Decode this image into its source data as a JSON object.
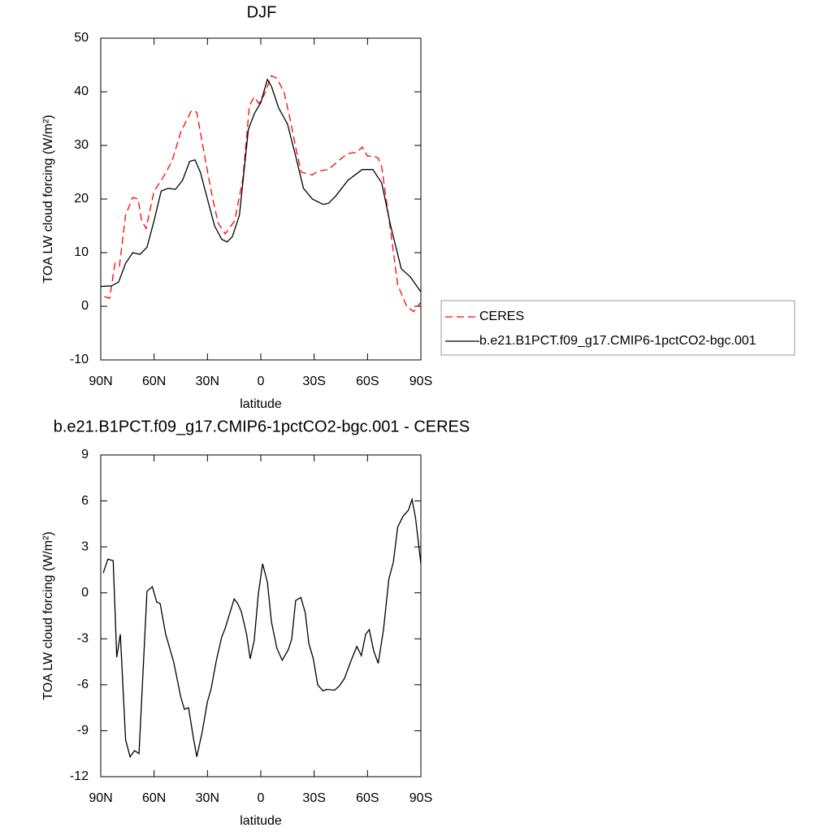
{
  "chart_data": [
    {
      "type": "line",
      "title": "DJF",
      "xlabel": "latitude",
      "ylabel": "TOA LW cloud forcing (W/m²)",
      "xlim": [
        90,
        -90
      ],
      "xticks": [
        {
          "value": 90,
          "label": "90N"
        },
        {
          "value": 60,
          "label": "60N"
        },
        {
          "value": 30,
          "label": "30N"
        },
        0,
        {
          "value": -30,
          "label": "30S"
        },
        {
          "value": -60,
          "label": "60S"
        },
        {
          "value": -90,
          "label": "90S"
        }
      ],
      "ylim": [
        -10,
        50
      ],
      "yticks": [
        -10,
        0,
        10,
        20,
        30,
        40,
        50
      ],
      "legend": "right",
      "series": [
        {
          "name": "CERES",
          "color": "#ff0000",
          "dash": true,
          "x": [
            88,
            85,
            82,
            79.5,
            76,
            72,
            69,
            67,
            64.5,
            60,
            55,
            50,
            45,
            39,
            36,
            31,
            27,
            24,
            20,
            14.6,
            10,
            6.4,
            3.7,
            1,
            -2,
            -6,
            -9,
            -13,
            -16.4,
            -20,
            -22.8,
            -29,
            -32,
            -38,
            -45,
            -49,
            -54,
            -57,
            -60,
            -64,
            -66,
            -68,
            -73,
            -77,
            -82,
            -86,
            -90
          ],
          "values": [
            1.8,
            1.5,
            8,
            7.5,
            17,
            20.3,
            20,
            16,
            14.5,
            21.5,
            24,
            27,
            32.5,
            36.5,
            36.2,
            27,
            20,
            15.5,
            13.5,
            16,
            24,
            37.5,
            39,
            37.8,
            39.5,
            43,
            42.5,
            40,
            35,
            29,
            25,
            24.5,
            25.2,
            25.5,
            27.5,
            28.5,
            28.7,
            29.7,
            28,
            28,
            27.6,
            26,
            14,
            4,
            0,
            -1,
            0.8
          ]
        },
        {
          "name": "b.e21.B1PCT.f09_g17.CMIP6-1pctCO2-bgc.001",
          "color": "#000000",
          "dash": false,
          "x": [
            90,
            84,
            80,
            76,
            72,
            68,
            64,
            60,
            56,
            52,
            48,
            44,
            40,
            37,
            34,
            30,
            26,
            22,
            19,
            16,
            12,
            7,
            3.5,
            0,
            -3.7,
            -6,
            -10,
            -15,
            -19.6,
            -24,
            -29,
            -35,
            -38,
            -42,
            -49,
            -57,
            -63,
            -68,
            -73,
            -79,
            -84,
            -90
          ],
          "values": [
            3.7,
            3.8,
            4.5,
            8,
            10,
            9.7,
            11,
            16,
            21.5,
            22,
            21.8,
            23.5,
            27,
            27.3,
            25,
            20,
            15,
            12.5,
            12,
            13,
            17,
            33,
            36,
            38,
            42.3,
            41,
            37,
            34,
            28,
            22,
            20,
            19,
            19.2,
            20.5,
            23.5,
            25.5,
            25.5,
            23,
            15,
            7,
            5.5,
            2.7
          ]
        }
      ]
    },
    {
      "type": "line",
      "title": "b.e21.B1PCT.f09_g17.CMIP6-1pctCO2-bgc.001 - CERES",
      "xlabel": "latitude",
      "ylabel": "TOA LW cloud forcing (W/m²)",
      "xlim": [
        90,
        -90
      ],
      "xticks": [
        {
          "value": 90,
          "label": "90N"
        },
        {
          "value": 60,
          "label": "60N"
        },
        {
          "value": 30,
          "label": "30N"
        },
        0,
        {
          "value": -30,
          "label": "30S"
        },
        {
          "value": -60,
          "label": "60S"
        },
        {
          "value": -90,
          "label": "90S"
        }
      ],
      "ylim": [
        -12,
        9
      ],
      "yticks": [
        -12,
        -9,
        -6,
        -3,
        0,
        3,
        6,
        9
      ],
      "series": [
        {
          "color": "#000000",
          "x": [
            88.6,
            86,
            83,
            81,
            79,
            76,
            73.5,
            71,
            68.5,
            64,
            61,
            58.5,
            56.6,
            53.5,
            49,
            45,
            43,
            40.6,
            38,
            36,
            33,
            30,
            28,
            25,
            22,
            20,
            15,
            13,
            11,
            8,
            6,
            3.7,
            1.4,
            -1,
            -3.7,
            -6,
            -9,
            -12,
            -15.5,
            -17.4,
            -19.6,
            -22.5,
            -25,
            -27,
            -29.5,
            -32,
            -35,
            -37,
            -41.5,
            -44,
            -47,
            -50.5,
            -54,
            -56.5,
            -59,
            -61,
            -63.5,
            -66,
            -69,
            -72,
            -74.5,
            -77,
            -80,
            -83,
            -85,
            -87,
            -90
          ],
          "values": [
            1.3,
            2.2,
            2.1,
            -4.2,
            -2.7,
            -9.6,
            -10.7,
            -10.3,
            -10.5,
            0.1,
            0.4,
            -0.6,
            -0.7,
            -2.7,
            -4.5,
            -6.8,
            -7.6,
            -7.5,
            -9.4,
            -10.7,
            -9.1,
            -7.1,
            -6.3,
            -4.4,
            -2.9,
            -2.3,
            -0.4,
            -0.7,
            -1.2,
            -2.7,
            -4.3,
            -3.1,
            -0.1,
            1.9,
            0.7,
            -1.9,
            -3.6,
            -4.4,
            -3.7,
            -3,
            -0.5,
            -0.3,
            -1.3,
            -3.3,
            -4.3,
            -6,
            -6.4,
            -6.3,
            -6.35,
            -6.1,
            -5.6,
            -4.5,
            -3.5,
            -4.1,
            -2.7,
            -2.4,
            -3.8,
            -4.6,
            -2.4,
            0.9,
            2,
            4.3,
            5,
            5.4,
            6.1,
            4.9,
            1.9
          ]
        }
      ]
    }
  ]
}
